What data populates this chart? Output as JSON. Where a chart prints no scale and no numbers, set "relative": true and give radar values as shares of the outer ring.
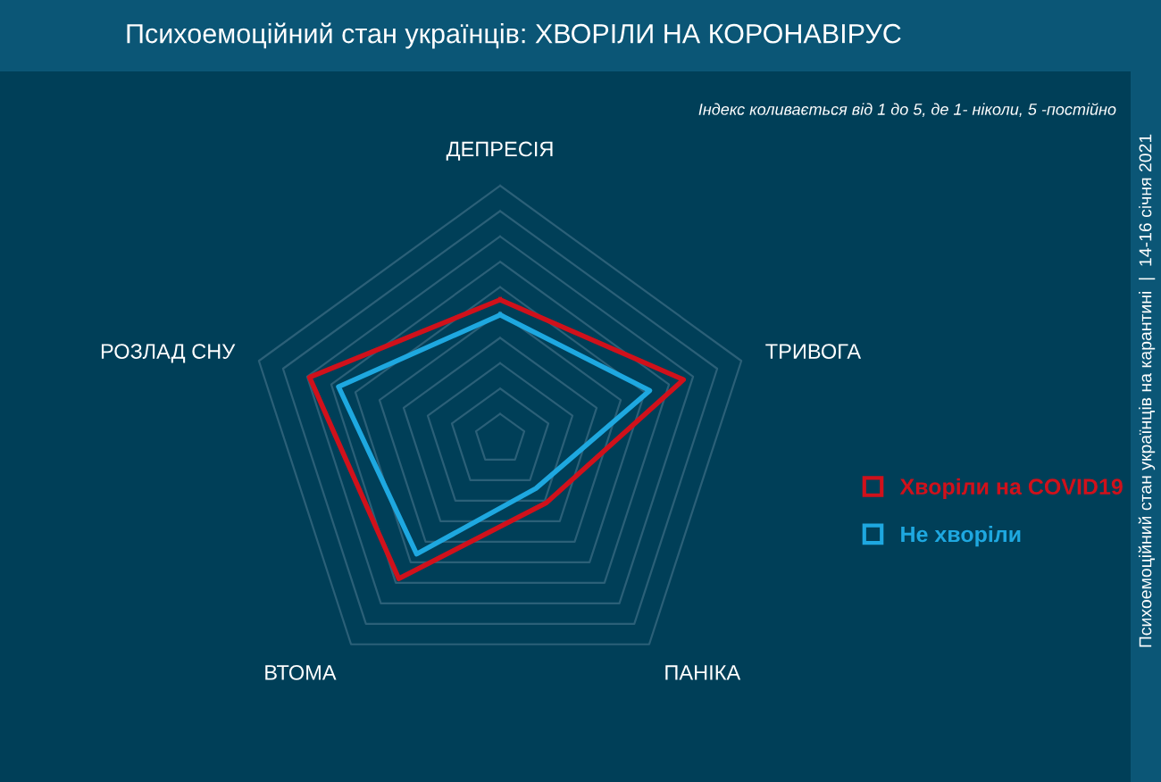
{
  "chart_data": {
    "type": "radar",
    "title": "Психоемоційний стан українців: ХВОРІЛИ НА КОРОНАВІРУС",
    "subtitle": "Індекс коливається від 1 до 5, де 1- ніколи, 5 -постійно",
    "annotations": [
      "Психоемоційний стан українців на карантині  |  14-16 січня 2021"
    ],
    "categories": [
      "ДЕПРЕСІЯ",
      "ТРИВОГА",
      "ПАНІКА",
      "ВТОМА",
      "РОЗЛАД СНУ"
    ],
    "relative": true,
    "grid": true,
    "legend": "right",
    "series": [
      {
        "name": "Хворіли на COVID19",
        "color": "#d0111b",
        "values": [
          0.55,
          0.76,
          0.31,
          0.68,
          0.79
        ]
      },
      {
        "name": "Не хворіли",
        "color": "#1ea8e0",
        "values": [
          0.49,
          0.62,
          0.24,
          0.56,
          0.67
        ]
      }
    ]
  }
}
